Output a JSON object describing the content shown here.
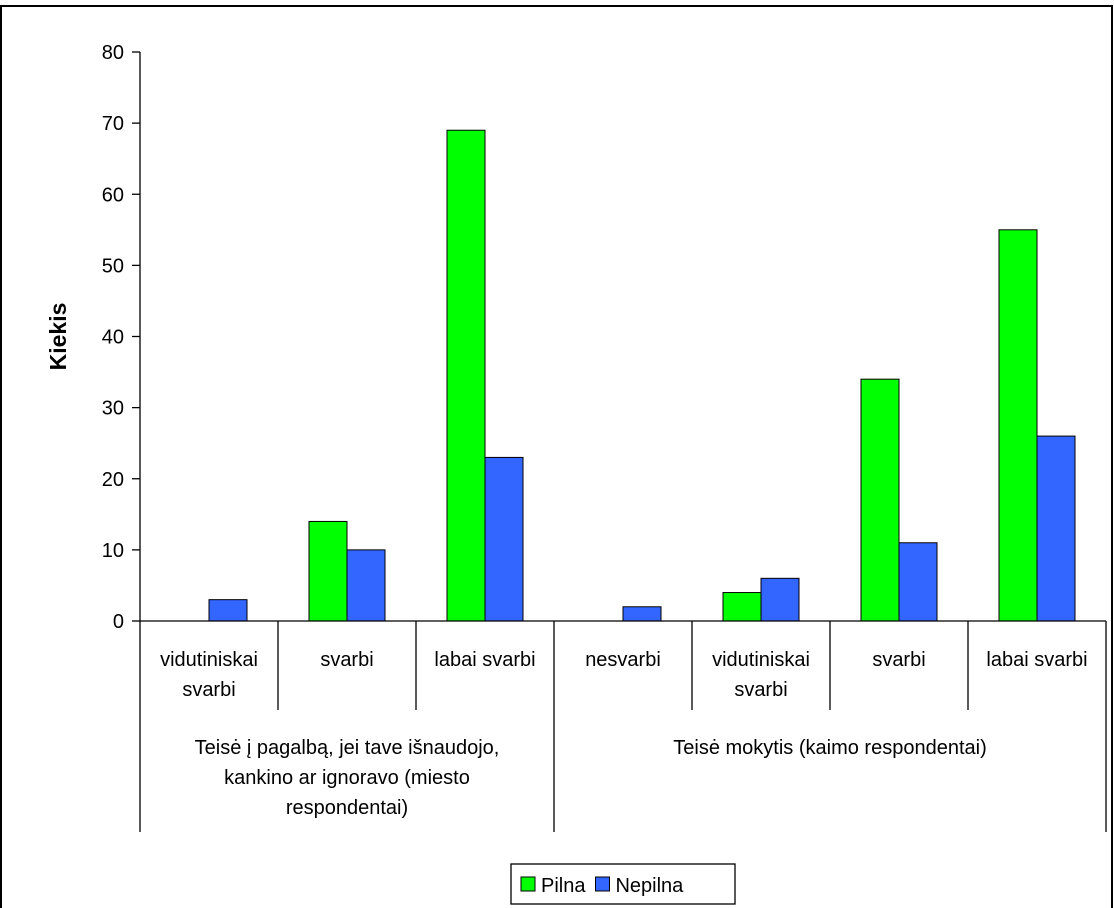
{
  "chart_data": {
    "type": "bar",
    "ylabel": "Kiekis",
    "ylim": [
      0,
      80
    ],
    "yticks": [
      0,
      10,
      20,
      30,
      40,
      50,
      60,
      70,
      80
    ],
    "groups": [
      {
        "label_lines": [
          "Teisė į pagalbą, jei tave išnaudojo,",
          "kankino ar ignoravo (miesto",
          "respondentai)"
        ],
        "categories": [
          {
            "label_lines": [
              "vidutiniskai",
              "svarbi"
            ]
          },
          {
            "label_lines": [
              "svarbi"
            ]
          },
          {
            "label_lines": [
              "labai svarbi"
            ]
          }
        ]
      },
      {
        "label_lines": [
          "Teisė mokytis (kaimo respondentai)"
        ],
        "categories": [
          {
            "label_lines": [
              "nesvarbi"
            ]
          },
          {
            "label_lines": [
              "vidutiniskai",
              "svarbi"
            ]
          },
          {
            "label_lines": [
              "svarbi"
            ]
          },
          {
            "label_lines": [
              "labai svarbi"
            ]
          }
        ]
      }
    ],
    "series": [
      {
        "name": "Pilna",
        "color": "#00ff00",
        "values": [
          0,
          14,
          69,
          0,
          4,
          34,
          55
        ]
      },
      {
        "name": "Nepilna",
        "color": "#3366ff",
        "values": [
          3,
          10,
          23,
          2,
          6,
          11,
          26
        ]
      }
    ],
    "grid": false,
    "legend": "bottom"
  }
}
